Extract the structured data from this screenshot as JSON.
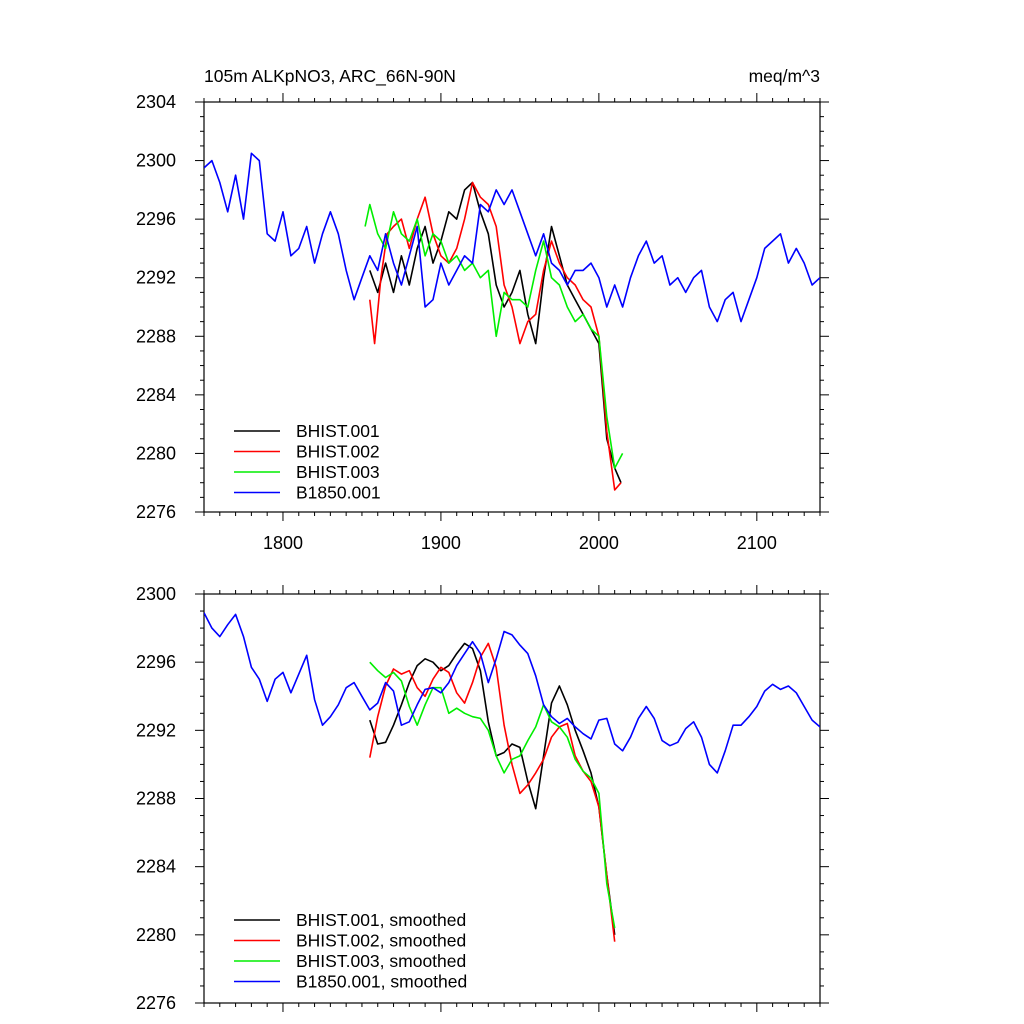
{
  "figure": {
    "title_left": "105m ALKpNO3, ARC_66N-90N",
    "title_right": "meq/m^3"
  },
  "chart_data": [
    {
      "type": "line",
      "xlim": [
        1750,
        2140
      ],
      "ylim": [
        2276,
        2304
      ],
      "x_ticks": [
        1800,
        1900,
        2000,
        2100
      ],
      "x_tick_labels": [
        "1800",
        "1900",
        "2000",
        "2100"
      ],
      "y_ticks": [
        2276,
        2280,
        2284,
        2288,
        2292,
        2296,
        2300,
        2304
      ],
      "y_tick_labels": [
        "2276",
        "2280",
        "2284",
        "2288",
        "2292",
        "2296",
        "2300",
        "2304"
      ],
      "grid": false,
      "legend_position": "bottom-left",
      "series": [
        {
          "name": "BHIST.001",
          "color": "#000000",
          "x": [
            1855,
            1860,
            1865,
            1870,
            1875,
            1880,
            1885,
            1890,
            1895,
            1900,
            1905,
            1910,
            1915,
            1920,
            1925,
            1930,
            1935,
            1940,
            1945,
            1950,
            1955,
            1960,
            1965,
            1970,
            1975,
            1980,
            1985,
            1990,
            1995,
            2000,
            2005,
            2010,
            2014
          ],
          "y": [
            2292.5,
            2291,
            2293,
            2291,
            2293.5,
            2291.5,
            2294,
            2295.5,
            2293,
            2294.5,
            2296.5,
            2296,
            2298,
            2298.5,
            2296.5,
            2295,
            2291.5,
            2290,
            2291,
            2292.5,
            2289.5,
            2287.5,
            2292,
            2295.5,
            2293.5,
            2291.5,
            2290.5,
            2289.5,
            2288.5,
            2287.5,
            2281,
            2279,
            2278
          ]
        },
        {
          "name": "BHIST.002",
          "color": "#ff0000",
          "x": [
            1855,
            1858,
            1862,
            1866,
            1870,
            1875,
            1880,
            1885,
            1890,
            1895,
            1900,
            1905,
            1910,
            1915,
            1920,
            1925,
            1930,
            1935,
            1940,
            1945,
            1950,
            1955,
            1960,
            1965,
            1970,
            1975,
            1980,
            1985,
            1990,
            1995,
            2000,
            2005,
            2010,
            2014
          ],
          "y": [
            2290.5,
            2287.5,
            2292,
            2295,
            2295.5,
            2296,
            2294,
            2296,
            2297.5,
            2295,
            2293.5,
            2293,
            2294,
            2296,
            2298.5,
            2297.5,
            2297,
            2295.5,
            2291.5,
            2290,
            2287.5,
            2289,
            2289.5,
            2292.5,
            2294.5,
            2293,
            2292,
            2291.5,
            2290.5,
            2290,
            2288,
            2281.5,
            2277.5,
            2278
          ]
        },
        {
          "name": "BHIST.003",
          "color": "#00ee00",
          "x": [
            1852,
            1855,
            1860,
            1865,
            1870,
            1875,
            1880,
            1885,
            1890,
            1895,
            1900,
            1905,
            1910,
            1915,
            1920,
            1925,
            1930,
            1935,
            1940,
            1945,
            1950,
            1955,
            1960,
            1965,
            1970,
            1975,
            1980,
            1985,
            1990,
            1995,
            2000,
            2005,
            2010,
            2015
          ],
          "y": [
            2295.5,
            2297,
            2295,
            2294,
            2296.5,
            2295,
            2294.5,
            2296,
            2293.5,
            2295,
            2294.5,
            2293,
            2293.5,
            2292.5,
            2293,
            2292,
            2292.5,
            2288,
            2291,
            2290.5,
            2290.5,
            2290,
            2292.5,
            2294.5,
            2292,
            2291.5,
            2290,
            2289,
            2289.5,
            2288.5,
            2288,
            2282.5,
            2279,
            2280
          ]
        },
        {
          "name": "B1850.001",
          "color": "#0000ff",
          "x": [
            1750,
            1755,
            1760,
            1765,
            1770,
            1775,
            1780,
            1785,
            1790,
            1795,
            1800,
            1805,
            1810,
            1815,
            1820,
            1825,
            1830,
            1835,
            1840,
            1845,
            1850,
            1855,
            1860,
            1865,
            1870,
            1875,
            1880,
            1885,
            1890,
            1895,
            1900,
            1905,
            1910,
            1915,
            1920,
            1925,
            1930,
            1935,
            1940,
            1945,
            1950,
            1955,
            1960,
            1965,
            1970,
            1975,
            1980,
            1985,
            1990,
            1995,
            2000,
            2005,
            2010,
            2015,
            2020,
            2025,
            2030,
            2035,
            2040,
            2045,
            2050,
            2055,
            2060,
            2065,
            2070,
            2075,
            2080,
            2085,
            2090,
            2095,
            2100,
            2105,
            2110,
            2115,
            2120,
            2125,
            2130,
            2135,
            2140
          ],
          "y": [
            2299.5,
            2300,
            2298.5,
            2296.5,
            2299,
            2296,
            2300.5,
            2300,
            2295,
            2294.5,
            2296.5,
            2293.5,
            2294,
            2295.5,
            2293,
            2295,
            2296.5,
            2295,
            2292.5,
            2290.5,
            2292,
            2293.5,
            2292.5,
            2295,
            2293,
            2291.5,
            2293.5,
            2295.5,
            2290,
            2290.5,
            2293,
            2291.5,
            2292.5,
            2293.5,
            2293,
            2297,
            2296.5,
            2298,
            2297,
            2298,
            2296.5,
            2295,
            2293.5,
            2295,
            2293,
            2292.5,
            2291.5,
            2292.5,
            2292.5,
            2293,
            2292,
            2290,
            2291.5,
            2290,
            2292,
            2293.5,
            2294.5,
            2293,
            2293.5,
            2291.5,
            2292,
            2291,
            2292,
            2292.5,
            2290,
            2289,
            2290.5,
            2291,
            2289,
            2290.5,
            2292,
            2294,
            2294.5,
            2295,
            2293,
            2294,
            2293,
            2291.5,
            2292
          ]
        }
      ]
    },
    {
      "type": "line",
      "xlim": [
        1750,
        2140
      ],
      "ylim": [
        2276,
        2300
      ],
      "x_ticks": [
        1800,
        1900,
        2000,
        2100
      ],
      "x_tick_labels": [
        "",
        "",
        "",
        ""
      ],
      "y_ticks": [
        2276,
        2280,
        2284,
        2288,
        2292,
        2296,
        2300
      ],
      "y_tick_labels": [
        "2276",
        "2280",
        "2284",
        "2288",
        "2292",
        "2296",
        "2300"
      ],
      "grid": false,
      "legend_position": "bottom-left",
      "series": [
        {
          "name": "BHIST.001, smoothed",
          "color": "#000000",
          "x": [
            1855,
            1860,
            1865,
            1870,
            1875,
            1880,
            1885,
            1890,
            1895,
            1900,
            1905,
            1910,
            1915,
            1920,
            1925,
            1930,
            1935,
            1940,
            1945,
            1950,
            1955,
            1960,
            1965,
            1970,
            1975,
            1980,
            1985,
            1990,
            1995,
            2000,
            2005,
            2010
          ],
          "y": [
            2292.6,
            2291.2,
            2291.3,
            2292.3,
            2293.5,
            2294.8,
            2295.8,
            2296.2,
            2296,
            2295.5,
            2295.8,
            2296.5,
            2297.1,
            2296.8,
            2295.5,
            2292.5,
            2290.5,
            2290.7,
            2291.2,
            2291,
            2289,
            2287.4,
            2290.5,
            2293.6,
            2294.6,
            2293.5,
            2292,
            2290.8,
            2289.5,
            2287.5,
            2283.5,
            2280
          ]
        },
        {
          "name": "BHIST.002, smoothed",
          "color": "#ff0000",
          "x": [
            1855,
            1860,
            1865,
            1870,
            1875,
            1880,
            1885,
            1890,
            1895,
            1900,
            1905,
            1910,
            1915,
            1920,
            1925,
            1930,
            1935,
            1940,
            1945,
            1950,
            1955,
            1960,
            1965,
            1970,
            1975,
            1980,
            1985,
            1990,
            1995,
            2000,
            2005,
            2010
          ],
          "y": [
            2290.4,
            2292.8,
            2294.6,
            2295.6,
            2295.3,
            2295.5,
            2294.5,
            2294,
            2295,
            2295.7,
            2295.4,
            2294.2,
            2293.6,
            2294.8,
            2296.3,
            2297.1,
            2295.7,
            2292.3,
            2290,
            2288.3,
            2288.8,
            2289.5,
            2290.3,
            2291.6,
            2292.2,
            2292.4,
            2290.5,
            2289.6,
            2289,
            2287.5,
            2283.5,
            2279.6
          ]
        },
        {
          "name": "BHIST.003, smoothed",
          "color": "#00ee00",
          "x": [
            1855,
            1860,
            1865,
            1870,
            1875,
            1880,
            1885,
            1890,
            1895,
            1900,
            1905,
            1910,
            1915,
            1920,
            1925,
            1930,
            1935,
            1940,
            1945,
            1950,
            1955,
            1960,
            1965,
            1970,
            1975,
            1980,
            1985,
            1990,
            1995,
            2000,
            2005,
            2010
          ],
          "y": [
            2296,
            2295.5,
            2295.1,
            2295.4,
            2294.9,
            2293.4,
            2292.3,
            2293.5,
            2294.5,
            2294.5,
            2293,
            2293.3,
            2293,
            2292.8,
            2292.7,
            2292,
            2290.5,
            2289.5,
            2290.3,
            2290.5,
            2291.4,
            2292.2,
            2293.5,
            2292.5,
            2292.2,
            2291.6,
            2290.3,
            2289.6,
            2289.2,
            2288.3,
            2283,
            2280.4
          ]
        },
        {
          "name": "B1850.001, smoothed",
          "color": "#0000ff",
          "x": [
            1750,
            1755,
            1760,
            1765,
            1770,
            1775,
            1780,
            1785,
            1790,
            1795,
            1800,
            1805,
            1810,
            1815,
            1820,
            1825,
            1830,
            1835,
            1840,
            1845,
            1850,
            1855,
            1860,
            1865,
            1870,
            1875,
            1880,
            1885,
            1890,
            1895,
            1900,
            1905,
            1910,
            1915,
            1920,
            1925,
            1930,
            1935,
            1940,
            1945,
            1950,
            1955,
            1960,
            1965,
            1970,
            1975,
            1980,
            1985,
            1990,
            1995,
            2000,
            2005,
            2010,
            2015,
            2020,
            2025,
            2030,
            2035,
            2040,
            2045,
            2050,
            2055,
            2060,
            2065,
            2070,
            2075,
            2080,
            2085,
            2090,
            2095,
            2100,
            2105,
            2110,
            2115,
            2120,
            2125,
            2130,
            2135,
            2140
          ],
          "y": [
            2298.9,
            2298,
            2297.5,
            2298.2,
            2298.8,
            2297.5,
            2295.7,
            2295,
            2293.7,
            2295,
            2295.4,
            2294.2,
            2295.3,
            2296.4,
            2293.8,
            2292.3,
            2292.8,
            2293.5,
            2294.5,
            2294.8,
            2294,
            2293.2,
            2293.6,
            2294.8,
            2294.3,
            2292.3,
            2292.5,
            2293.5,
            2294.4,
            2294.5,
            2294.2,
            2294.8,
            2295.8,
            2296.5,
            2297.2,
            2296.5,
            2294.8,
            2296.2,
            2297.8,
            2297.6,
            2297,
            2296.5,
            2295.2,
            2293.5,
            2292.8,
            2292.4,
            2292.7,
            2292.2,
            2291.8,
            2291.5,
            2292.6,
            2292.7,
            2291.2,
            2290.8,
            2291.6,
            2292.7,
            2293.4,
            2292.7,
            2291.4,
            2291.1,
            2291.3,
            2292.1,
            2292.5,
            2291.6,
            2290,
            2289.5,
            2290.8,
            2292.3,
            2292.3,
            2292.8,
            2293.4,
            2294.3,
            2294.7,
            2294.4,
            2294.6,
            2294.2,
            2293.4,
            2292.6,
            2292.2
          ]
        }
      ]
    }
  ]
}
